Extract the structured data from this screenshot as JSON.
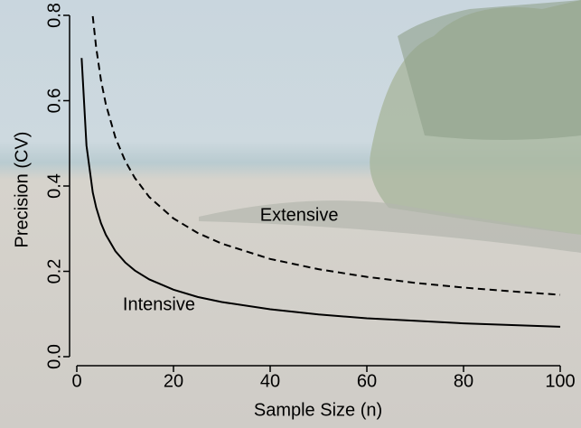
{
  "chart_data": {
    "type": "line",
    "x": [
      1,
      2,
      3.3,
      4,
      5,
      6,
      8,
      10,
      12,
      15,
      20,
      25,
      30,
      40,
      50,
      60,
      70,
      80,
      90,
      100
    ],
    "series": [
      {
        "name": "Intensive",
        "color": "#000000",
        "style": "solid",
        "values": [
          0.7,
          0.495,
          0.385,
          0.35,
          0.313,
          0.286,
          0.247,
          0.221,
          0.202,
          0.181,
          0.157,
          0.14,
          0.128,
          0.111,
          0.099,
          0.09,
          0.084,
          0.078,
          0.074,
          0.07
        ]
      },
      {
        "name": "Extensive",
        "color": "#000000",
        "style": "dashed",
        "values": [
          null,
          null,
          0.798,
          0.725,
          0.648,
          0.592,
          0.513,
          0.459,
          0.419,
          0.374,
          0.324,
          0.29,
          0.265,
          0.229,
          0.205,
          0.187,
          0.173,
          0.162,
          0.153,
          0.145
        ]
      }
    ],
    "xlim": [
      0,
      100
    ],
    "xticks": [
      0,
      20,
      40,
      60,
      80,
      100
    ],
    "ylim": [
      0,
      0.8
    ],
    "yticks": [
      {
        "value": 0,
        "label": "0.0"
      },
      0.2,
      0.4,
      0.6,
      0.8
    ],
    "x_label": "Sample Size  (n)",
    "y_label": "Precision  (CV)"
  }
}
